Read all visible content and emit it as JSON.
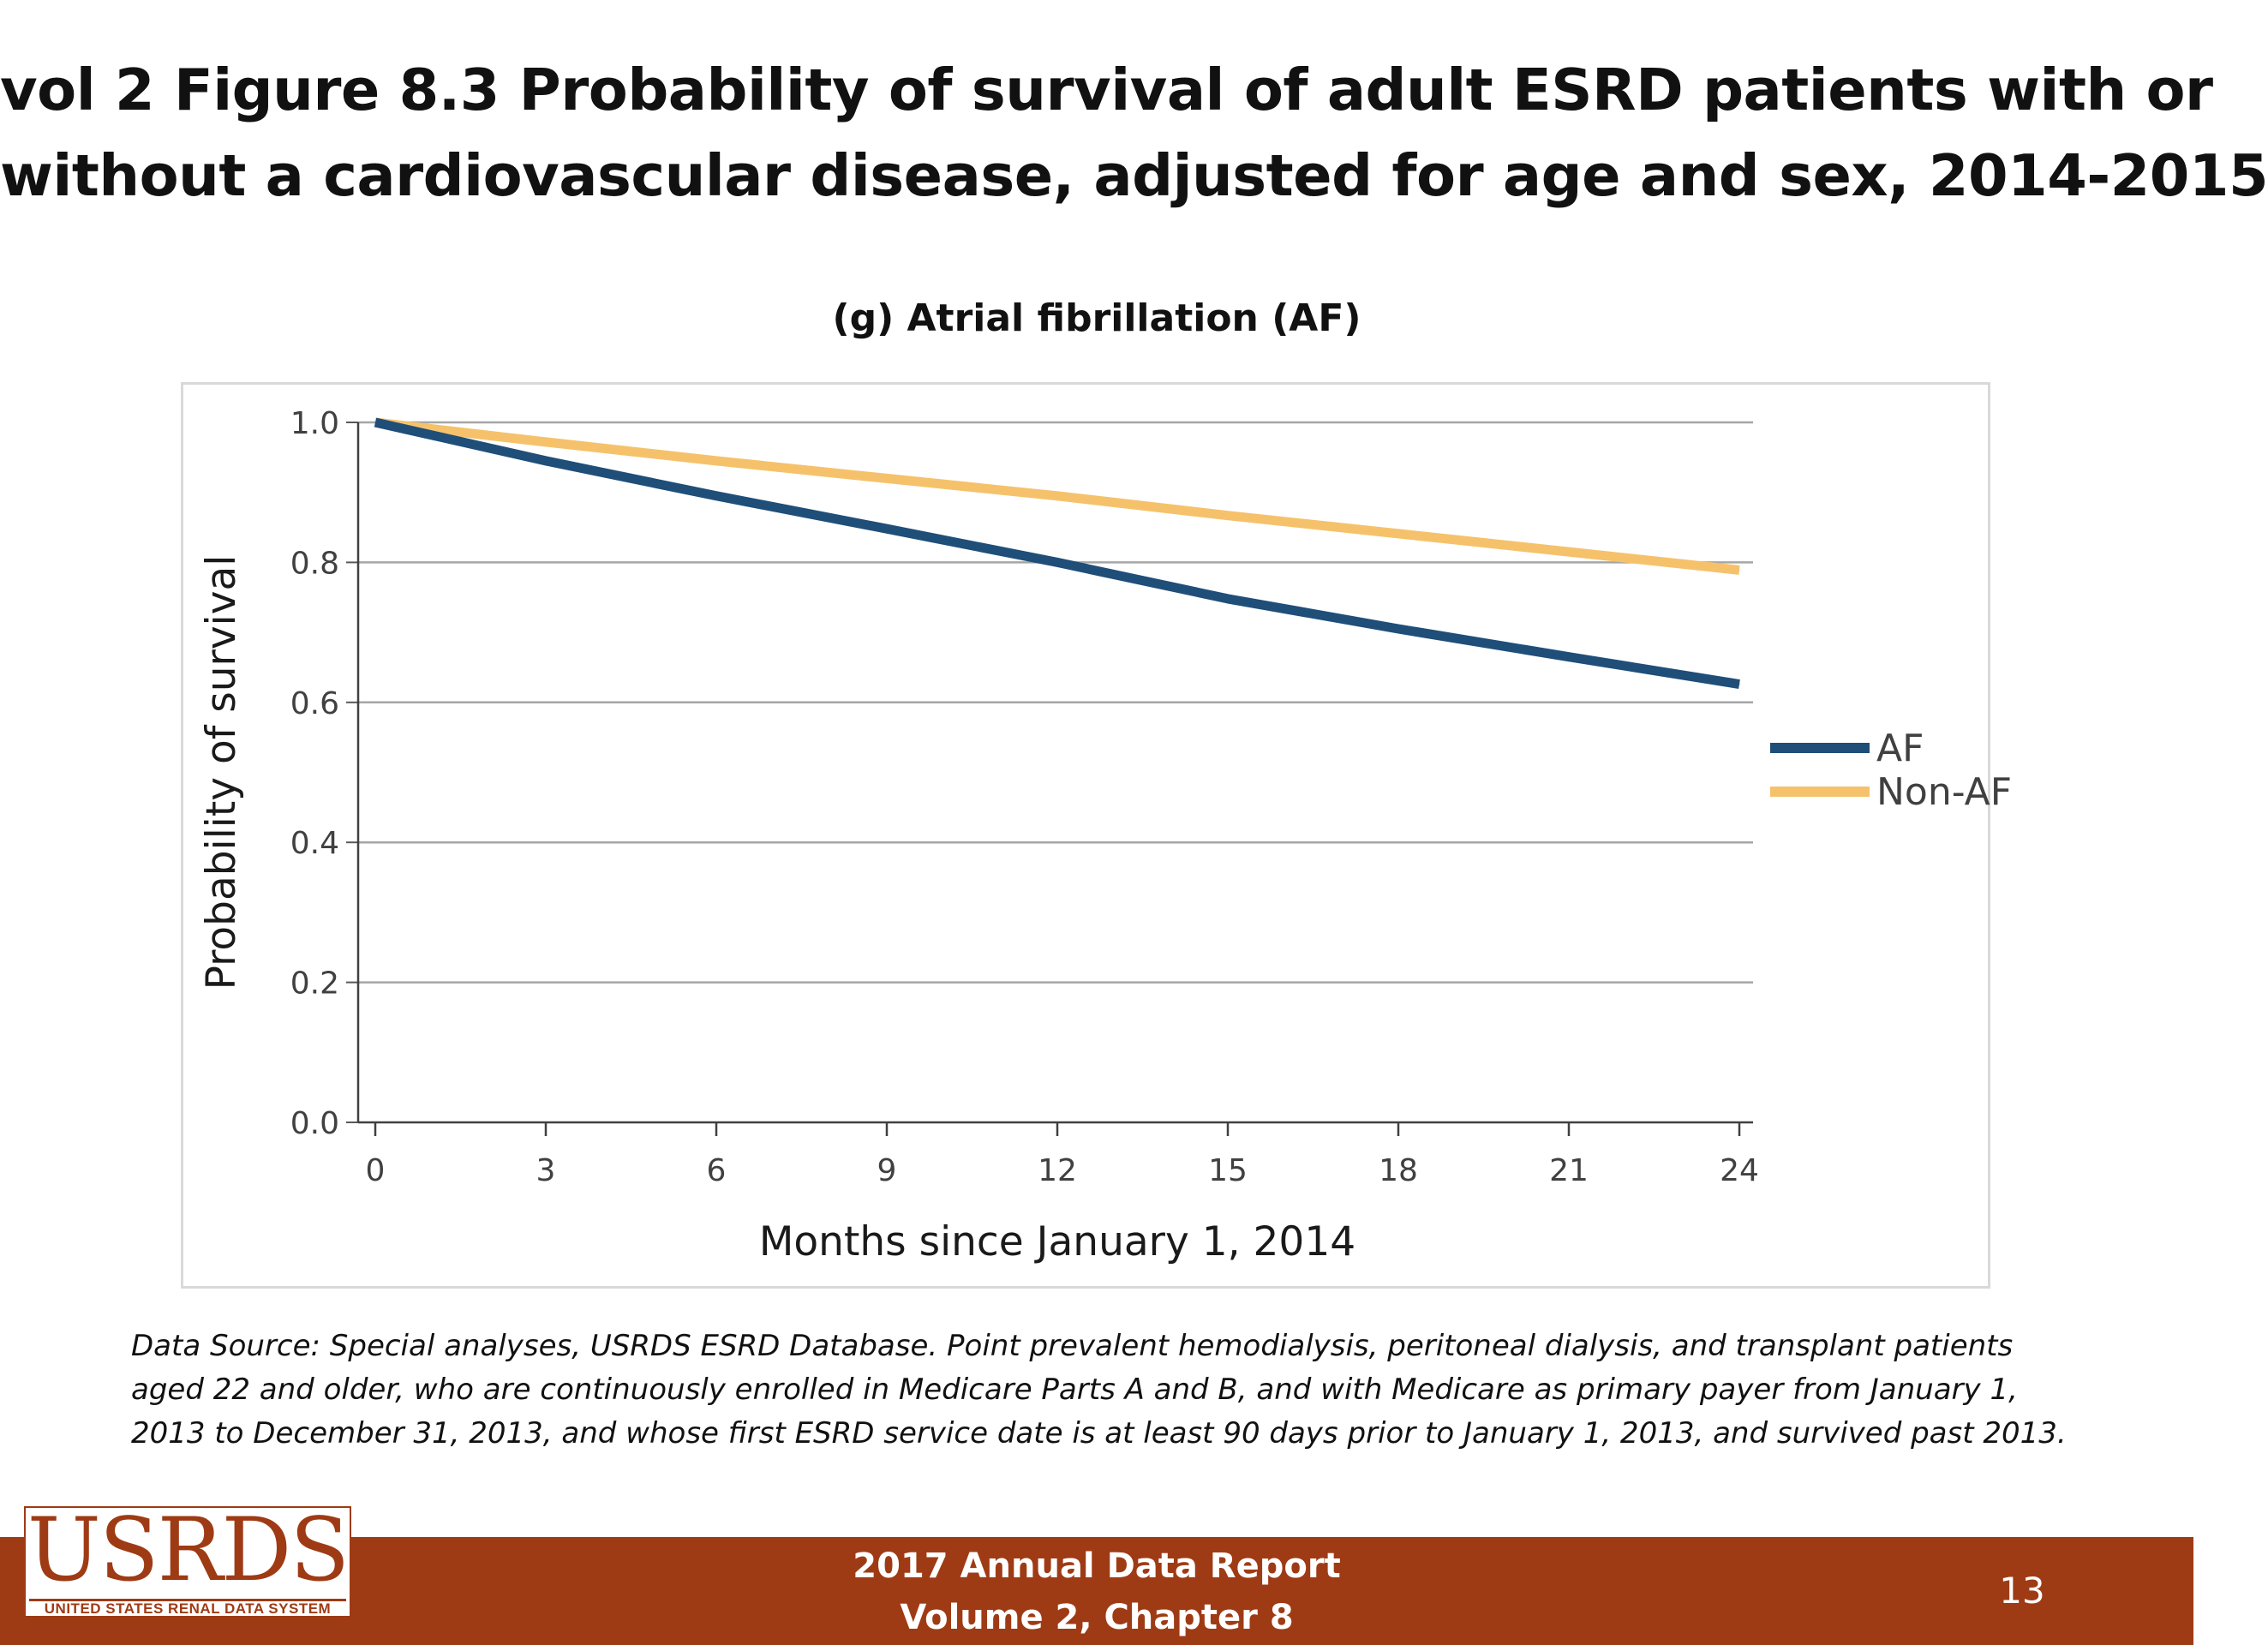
{
  "slide": {
    "title_lines": [
      "vol 2 Figure 8.3 Probability of survival of adult ESRD patients with or",
      "without a cardiovascular disease, adjusted for age and sex, 2014-2015"
    ],
    "footnote_lines": [
      "Data Source: Special analyses, USRDS ESRD Database. Point prevalent hemodialysis, peritoneal dialysis, and transplant patients",
      "aged 22 and older, who are continuously enrolled in Medicare Parts A and B, and with Medicare as primary payer from January 1,",
      "2013 to December 31, 2013, and whose first ESRD service date is at least 90 days prior to January 1, 2013, and survived past 2013."
    ]
  },
  "footer": {
    "report_line1": "2017 Annual Data Report",
    "report_line2": "Volume 2, Chapter 8",
    "page_number": "13",
    "logo_text": "USRDS",
    "logo_subtext": "UNITED STATES RENAL DATA SYSTEM",
    "bar_color": "#9e3b15"
  },
  "chart_data": {
    "type": "line",
    "title": "(g) Atrial fibrillation (AF)",
    "xlabel": "Months since January 1, 2014",
    "ylabel": "Probability of survival",
    "xlim": [
      0,
      24
    ],
    "ylim": [
      0,
      1
    ],
    "x_ticks": [
      0,
      3,
      6,
      9,
      12,
      15,
      18,
      21,
      24
    ],
    "y_ticks": [
      0.0,
      0.2,
      0.4,
      0.6,
      0.8,
      1.0
    ],
    "y_tick_labels": [
      "0.0",
      "0.2",
      "0.4",
      "0.6",
      "0.8",
      "1.0"
    ],
    "grid": "horizontal",
    "legend_position": "right",
    "x": [
      0,
      3,
      6,
      9,
      12,
      15,
      18,
      21,
      24
    ],
    "series": [
      {
        "name": "AF",
        "color": "#1f4e79",
        "values": [
          1.0,
          0.945,
          0.895,
          0.848,
          0.8,
          0.748,
          0.705,
          0.665,
          0.626
        ]
      },
      {
        "name": "Non-AF",
        "color": "#f5c26b",
        "values": [
          1.0,
          0.972,
          0.945,
          0.92,
          0.895,
          0.867,
          0.841,
          0.815,
          0.789
        ]
      }
    ]
  }
}
